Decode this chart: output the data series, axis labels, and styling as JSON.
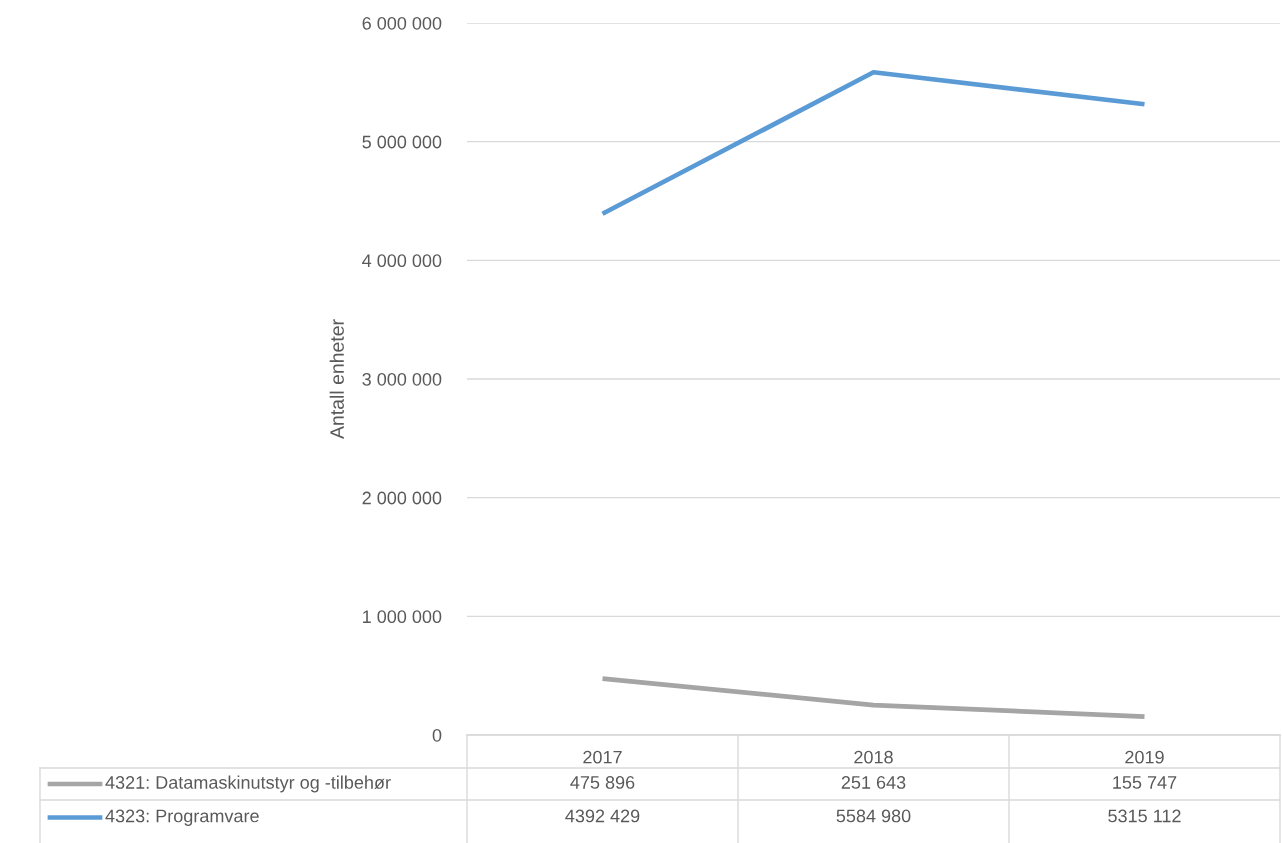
{
  "chart_data": {
    "type": "line",
    "ylabel": "Antall enheter",
    "categories": [
      "2017",
      "2018",
      "2019"
    ],
    "series": [
      {
        "name": "4321: Datamaskinutstyr og -tilbehør",
        "color": "#a5a5a5",
        "values": [
          475896,
          251643,
          155747
        ],
        "value_labels": [
          "475 896",
          "251 643",
          "155 747"
        ]
      },
      {
        "name": "4323: Programvare",
        "color": "#5b9bd5",
        "values": [
          4392429,
          5584980,
          5315112
        ],
        "value_labels": [
          "4392 429",
          "5584 980",
          "5315 112"
        ]
      }
    ],
    "ylim": [
      0,
      6000000
    ],
    "yticks": [
      {
        "value": 0,
        "label": "0"
      },
      {
        "value": 1000000,
        "label": "1 000 000"
      },
      {
        "value": 2000000,
        "label": "2 000 000"
      },
      {
        "value": 3000000,
        "label": "3 000 000"
      },
      {
        "value": 4000000,
        "label": "4 000 000"
      },
      {
        "value": 5000000,
        "label": "5 000 000"
      },
      {
        "value": 6000000,
        "label": "6 000 000"
      }
    ],
    "grid": "y",
    "legend": "bottom",
    "line_style": "solid",
    "marker": "none"
  }
}
